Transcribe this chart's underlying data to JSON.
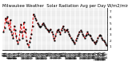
{
  "title": "Milwaukee Weather  Solar Radiation Avg per Day W/m2/minute",
  "title_fontsize": 3.8,
  "background_color": "#ffffff",
  "line_color": "#dd0000",
  "line_style": "--",
  "line_width": 0.7,
  "marker": "s",
  "marker_size": 1.0,
  "marker_color": "#000000",
  "ylim": [
    0.5,
    7.5
  ],
  "yticks": [
    1,
    2,
    3,
    4,
    5,
    6,
    7
  ],
  "ytick_labels": [
    "1",
    "2",
    "3",
    "4",
    "5",
    "6",
    "7"
  ],
  "grid_color": "#999999",
  "grid_style": ":",
  "tick_fontsize": 3.0,
  "x_tick_labels": [
    "4/1",
    "4/3",
    "4/5",
    "4/7",
    "4/9",
    "4/11",
    "4/13",
    "4/15",
    "4/17",
    "4/19",
    "4/21",
    "4/23",
    "4/25",
    "4/27",
    "4/29",
    "5/1",
    "5/3",
    "5/5",
    "5/7",
    "5/9",
    "5/11",
    "5/13",
    "5/15",
    "5/17",
    "5/19",
    "5/21",
    "5/23",
    "5/25",
    "5/27",
    "5/29",
    "5/31",
    "6/2",
    "6/4",
    "6/6",
    "6/8",
    "6/10",
    "6/12",
    "6/14",
    "6/16",
    "6/18",
    "6/20",
    "6/22",
    "6/24",
    "6/26",
    "6/28",
    "6/30",
    "7/2",
    "7/4",
    "7/6",
    "7/8",
    "7/10",
    "7/12",
    "7/14",
    "7/16",
    "7/18",
    "7/20",
    "7/22",
    "7/24",
    "7/26",
    "7/28",
    "7/30",
    "8/1",
    "8/3",
    "8/5",
    "8/7",
    "8/9",
    "8/11",
    "8/13",
    "8/15",
    "8/17",
    "8/19",
    "8/21",
    "8/23",
    "8/25",
    "8/27",
    "8/29",
    "8/31",
    "9/2",
    "9/4",
    "9/6",
    "9/8",
    "9/10",
    "9/12",
    "9/14",
    "9/16",
    "9/18",
    "9/20",
    "9/22",
    "9/24",
    "9/26",
    "9/28",
    "9/30",
    "10/2",
    "10/4",
    "10/6",
    "10/8",
    "10/10",
    "10/12",
    "10/14",
    "10/16",
    "10/18",
    "10/20",
    "10/22",
    "10/24",
    "10/26",
    "10/28",
    "10/30",
    "11/1"
  ],
  "values": [
    3.5,
    4.2,
    5.8,
    5.2,
    6.1,
    5.0,
    4.0,
    5.5,
    3.5,
    3.0,
    2.5,
    4.5,
    3.8,
    2.8,
    2.0,
    1.5,
    2.2,
    3.5,
    4.8,
    3.5,
    2.5,
    5.2,
    3.5,
    4.0,
    2.0,
    1.5,
    1.0,
    1.8,
    2.5,
    3.2,
    4.5,
    6.5,
    6.2,
    5.8,
    5.5,
    5.0,
    4.8,
    4.5,
    4.3,
    4.5,
    4.7,
    5.0,
    4.8,
    4.5,
    4.2,
    4.0,
    3.8,
    3.5,
    3.8,
    4.0,
    3.5,
    3.2,
    2.5,
    2.0,
    2.8,
    3.5,
    3.8,
    4.0,
    3.5,
    3.2,
    3.8,
    4.2,
    4.5,
    4.0,
    3.5,
    3.8,
    4.0,
    3.5,
    3.2,
    2.8,
    2.5,
    2.2,
    2.0,
    1.8,
    1.5,
    2.0,
    2.5,
    2.8,
    3.2,
    3.5,
    3.8,
    3.5,
    3.2,
    2.8,
    2.5,
    2.8,
    3.0,
    3.5,
    3.2,
    3.0,
    2.8,
    2.5,
    2.2,
    2.0,
    1.8,
    1.5,
    1.8,
    2.0,
    2.5,
    2.8,
    3.0,
    2.8,
    2.5,
    2.2,
    2.0,
    1.8,
    1.5,
    1.2
  ]
}
